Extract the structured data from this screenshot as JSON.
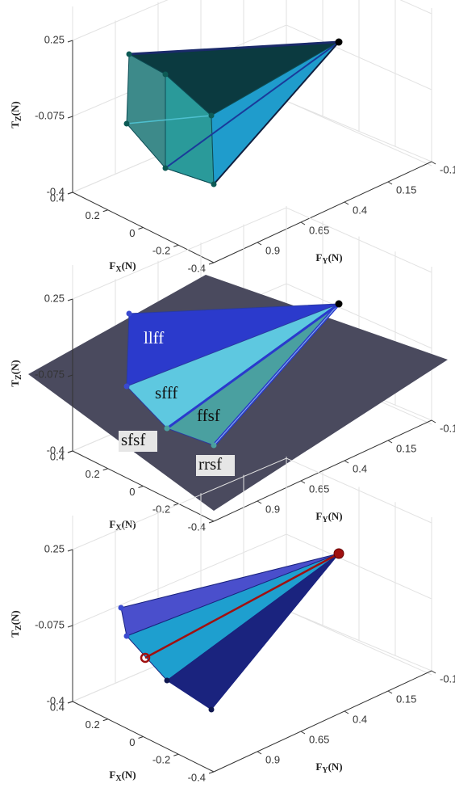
{
  "chart_data": [
    {
      "type": "3d-polytope",
      "xlabel": {
        "base": "F",
        "sub": "X",
        "unit": "(N)"
      },
      "ylabel": {
        "base": "F",
        "sub": "Y",
        "unit": "(N)"
      },
      "zlabel": {
        "base": "T",
        "sub": "Z",
        "unit": "(N)"
      },
      "xlim": [
        -0.4,
        0.4
      ],
      "xticks": [
        0.4,
        0.2,
        0,
        -0.2,
        -0.4
      ],
      "ylim": [
        -0.1,
        1.15
      ],
      "yticks": [
        0.9,
        0.65,
        0.4,
        0.15,
        -0.1
      ],
      "zlim": [
        -0.4,
        0.25
      ],
      "zticks": [
        0.25,
        -0.075,
        -0.4
      ],
      "grid": true
    },
    {
      "type": "3d-polytope",
      "xlabel": {
        "base": "F",
        "sub": "X",
        "unit": "(N)"
      },
      "ylabel": {
        "base": "F",
        "sub": "Y",
        "unit": "(N)"
      },
      "zlabel": {
        "base": "T",
        "sub": "Z",
        "unit": "(N)"
      },
      "xlim": [
        -0.4,
        0.4
      ],
      "xticks": [
        0.4,
        0.2,
        0,
        -0.2,
        -0.4
      ],
      "ylim": [
        -0.1,
        1.15
      ],
      "yticks": [
        0.9,
        0.65,
        0.4,
        0.15,
        -0.1
      ],
      "zlim": [
        -0.4,
        0.25
      ],
      "zticks": [
        0.25,
        -0.075,
        -0.4
      ],
      "grid": true,
      "annotations": [
        "llff",
        "sfff",
        "ffsf",
        "sfsf",
        "rrsf"
      ]
    },
    {
      "type": "3d-polytope",
      "xlabel": {
        "base": "F",
        "sub": "X",
        "unit": "(N)"
      },
      "ylabel": {
        "base": "F",
        "sub": "Y",
        "unit": "(N)"
      },
      "zlabel": {
        "base": "T",
        "sub": "Z",
        "unit": "(N)"
      },
      "xlim": [
        -0.4,
        0.4
      ],
      "xticks": [
        0.4,
        0.2,
        0,
        -0.2,
        -0.4
      ],
      "ylim": [
        -0.1,
        1.15
      ],
      "yticks": [
        0.9,
        0.65,
        0.4,
        0.15,
        -0.1
      ],
      "zlim": [
        -0.4,
        0.25
      ],
      "zticks": [
        0.25,
        -0.075,
        -0.4
      ],
      "grid": true
    }
  ]
}
